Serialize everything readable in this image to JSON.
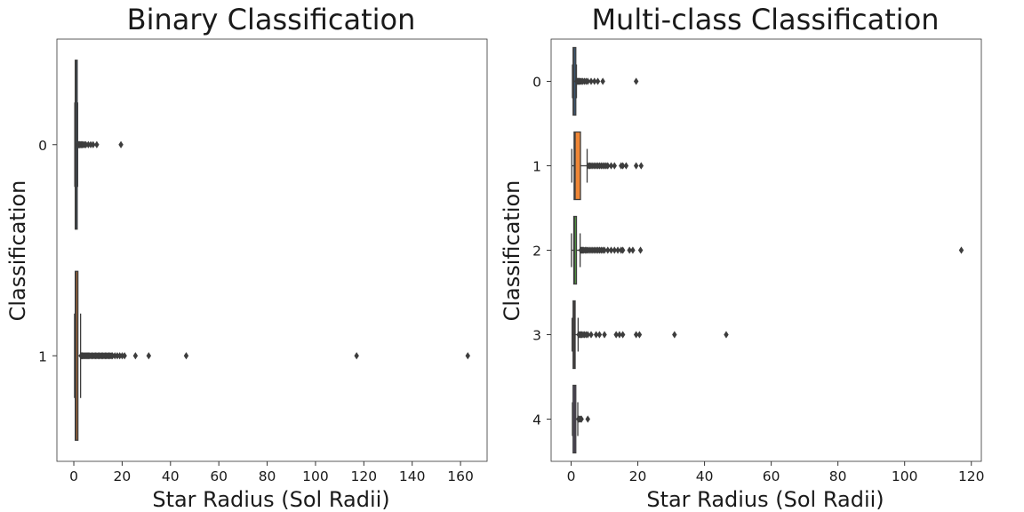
{
  "chart_data": [
    {
      "type": "boxplot",
      "orientation": "horizontal",
      "title": "Binary Classification",
      "xlabel": "Star Radius (Sol Radii)",
      "ylabel": "Classification",
      "xlim": [
        -7,
        171
      ],
      "xticks": [
        "0",
        "20",
        "40",
        "60",
        "80",
        "100",
        "120",
        "140",
        "160"
      ],
      "xtick_values": [
        0,
        20,
        40,
        60,
        80,
        100,
        120,
        140,
        160
      ],
      "categories": [
        "0",
        "1"
      ],
      "boxes": [
        {
          "category": "0",
          "whislo": 0.4,
          "q1": 0.6,
          "med": 0.9,
          "q3": 1.4,
          "whishi": 1.6,
          "color": "#3b76af",
          "fliers": [
            1.7,
            1.9,
            2.1,
            2.3,
            2.5,
            2.7,
            3.0,
            3.3,
            3.6,
            4.0,
            4.5,
            5.0,
            6.0,
            7.0,
            8.0,
            9.5,
            19.5
          ]
        },
        {
          "category": "1",
          "whislo": 0.3,
          "q1": 0.6,
          "med": 1.0,
          "q3": 1.7,
          "whishi": 2.8,
          "color": "#ef8636",
          "fliers": [
            3.0,
            3.3,
            3.6,
            4.0,
            4.4,
            4.8,
            5.2,
            5.6,
            6.0,
            6.5,
            7.0,
            7.5,
            8.0,
            8.5,
            9.0,
            9.5,
            10.0,
            10.5,
            11.0,
            11.5,
            12.0,
            12.5,
            13.0,
            13.5,
            14.0,
            14.5,
            15.0,
            15.5,
            16.0,
            17.0,
            18.0,
            19.0,
            20.0,
            21.0,
            25.5,
            31.0,
            46.5,
            117.0,
            163.0
          ]
        }
      ]
    },
    {
      "type": "boxplot",
      "orientation": "horizontal",
      "title": "Multi-class Classification",
      "xlabel": "Star Radius (Sol Radii)",
      "ylabel": "Classification",
      "xlim": [
        -6,
        123
      ],
      "xticks": [
        "0",
        "20",
        "40",
        "60",
        "80",
        "100",
        "120"
      ],
      "xtick_values": [
        0,
        20,
        40,
        60,
        80,
        100,
        120
      ],
      "categories": [
        "0",
        "1",
        "2",
        "3",
        "4"
      ],
      "boxes": [
        {
          "category": "0",
          "whislo": 0.4,
          "q1": 0.6,
          "med": 0.9,
          "q3": 1.4,
          "whishi": 1.6,
          "color": "#3b76af",
          "fliers": [
            1.7,
            1.9,
            2.1,
            2.3,
            2.5,
            2.8,
            3.1,
            3.5,
            4.0,
            4.5,
            5.0,
            6.0,
            7.0,
            8.0,
            9.5,
            19.5
          ]
        },
        {
          "category": "1",
          "whislo": 0.2,
          "q1": 0.9,
          "med": 1.2,
          "q3": 2.8,
          "whishi": 4.8,
          "color": "#ef8636",
          "fliers": [
            5.2,
            5.6,
            6.0,
            6.5,
            7.0,
            7.5,
            8.0,
            8.5,
            9.0,
            9.5,
            10.0,
            10.5,
            11.0,
            12.0,
            13.0,
            15.0,
            15.5,
            16.5,
            19.5,
            21.0
          ]
        },
        {
          "category": "2",
          "whislo": 0.1,
          "q1": 0.8,
          "med": 1.0,
          "q3": 1.6,
          "whishi": 2.7,
          "color": "#519e3e",
          "fliers": [
            2.9,
            3.2,
            3.5,
            3.8,
            4.2,
            4.6,
            5.0,
            5.5,
            6.0,
            6.5,
            7.0,
            7.5,
            8.0,
            8.5,
            9.0,
            9.5,
            10.0,
            11.0,
            12.0,
            13.0,
            14.0,
            15.0,
            15.5,
            17.5,
            18.5,
            20.8,
            117.0
          ]
        },
        {
          "category": "3",
          "whislo": 0.3,
          "q1": 0.6,
          "med": 0.9,
          "q3": 1.2,
          "whishi": 2.1,
          "color": "#c43932",
          "fliers": [
            2.3,
            2.6,
            2.9,
            3.2,
            3.6,
            4.0,
            4.5,
            5.0,
            6.0,
            7.5,
            8.5,
            10.0,
            13.5,
            14.5,
            15.5,
            19.5,
            20.5,
            31.0,
            46.5
          ]
        },
        {
          "category": "4",
          "whislo": 0.4,
          "q1": 0.6,
          "med": 1.0,
          "q3": 1.4,
          "whishi": 2.0,
          "color": "#8d69b8",
          "fliers": [
            2.2,
            2.5,
            2.8,
            3.1,
            5.0
          ]
        }
      ]
    }
  ]
}
